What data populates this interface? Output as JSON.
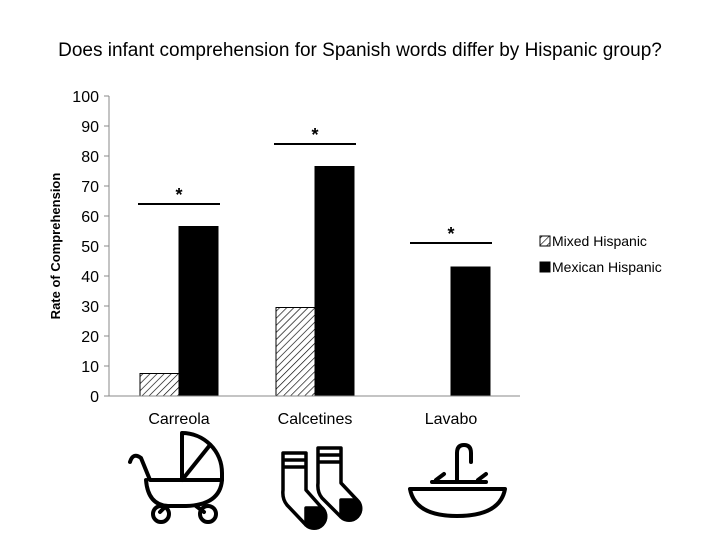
{
  "chart_data": {
    "type": "bar",
    "title": "Does infant comprehension for Spanish words differ by Hispanic group?",
    "xlabel": "",
    "ylabel": "Rate of Comprehension",
    "ylim": [
      0,
      100
    ],
    "yticks": [
      0,
      10,
      20,
      30,
      40,
      50,
      60,
      70,
      80,
      90,
      100
    ],
    "categories": [
      "Carreola",
      "Calcetines",
      "Lavabo"
    ],
    "series": [
      {
        "name": "Mixed Hispanic",
        "values": [
          7.5,
          29.5,
          0
        ],
        "pattern": "hatched",
        "color": "#000000"
      },
      {
        "name": "Mexican Hispanic",
        "values": [
          56.5,
          76.5,
          43
        ],
        "pattern": "solid",
        "color": "#000000"
      }
    ],
    "annotations": [
      {
        "category": "Carreola",
        "text": "*",
        "y": 64
      },
      {
        "category": "Calcetines",
        "text": "*",
        "y": 84
      },
      {
        "category": "Lavabo",
        "text": "*",
        "y": 51
      }
    ],
    "category_icons": [
      "stroller-icon",
      "socks-icon",
      "sink-icon"
    ],
    "grid": false,
    "legend": "right"
  }
}
